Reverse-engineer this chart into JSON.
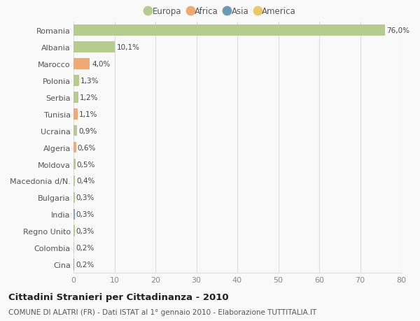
{
  "countries": [
    "Romania",
    "Albania",
    "Marocco",
    "Polonia",
    "Serbia",
    "Tunisia",
    "Ucraina",
    "Algeria",
    "Moldova",
    "Macedonia d/N.",
    "Bulgaria",
    "India",
    "Regno Unito",
    "Colombia",
    "Cina"
  ],
  "values": [
    76.0,
    10.1,
    4.0,
    1.3,
    1.2,
    1.1,
    0.9,
    0.6,
    0.5,
    0.4,
    0.3,
    0.3,
    0.3,
    0.2,
    0.2
  ],
  "labels": [
    "76,0%",
    "10,1%",
    "4,0%",
    "1,3%",
    "1,2%",
    "1,1%",
    "0,9%",
    "0,6%",
    "0,5%",
    "0,4%",
    "0,3%",
    "0,3%",
    "0,3%",
    "0,2%",
    "0,2%"
  ],
  "colors": [
    "#b5cc8e",
    "#b5cc8e",
    "#f0a875",
    "#b5cc8e",
    "#b5cc8e",
    "#f0a875",
    "#b5cc8e",
    "#f0a875",
    "#b5cc8e",
    "#b5cc8e",
    "#b5cc8e",
    "#7aaac8",
    "#b5cc8e",
    "#e8c96a",
    "#7aaac8"
  ],
  "legend": [
    {
      "label": "Europa",
      "color": "#b5cc8e"
    },
    {
      "label": "Africa",
      "color": "#f0a875"
    },
    {
      "label": "Asia",
      "color": "#6b9bb8"
    },
    {
      "label": "America",
      "color": "#e8c96a"
    }
  ],
  "title": "Cittadini Stranieri per Cittadinanza - 2010",
  "subtitle": "COMUNE DI ALATRI (FR) - Dati ISTAT al 1° gennaio 2010 - Elaborazione TUTTITALIA.IT",
  "xlim": [
    0,
    80
  ],
  "xticks": [
    0,
    10,
    20,
    30,
    40,
    50,
    60,
    70,
    80
  ],
  "bg_color": "#f9f9f9",
  "grid_color": "#dddddd",
  "bar_height": 0.65
}
